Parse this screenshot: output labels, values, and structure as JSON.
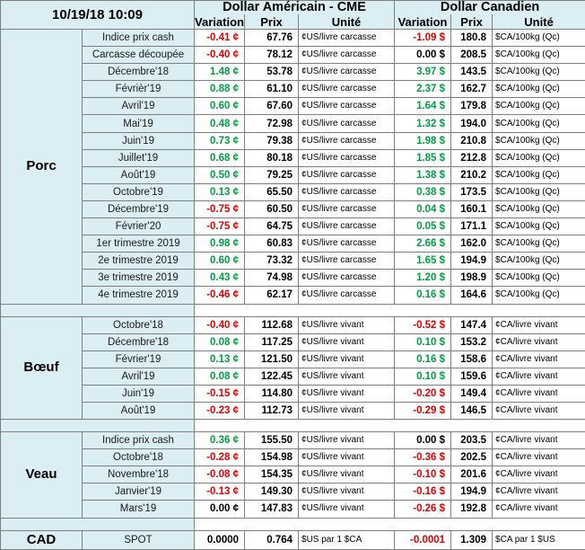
{
  "header": {
    "date": "10/19/18 10:09",
    "usd_title": "Dollar Américain - CME",
    "cad_title": "Dollar Canadien",
    "variation_label": "Variation",
    "prix_label": "Prix",
    "unite_label": "Unité"
  },
  "sections": [
    {
      "name": "Porc",
      "rows": [
        {
          "label": "Indice prix cash",
          "usd_var": "-0.41 ¢",
          "usd_prix": "67.76",
          "usd_unit": "¢US/livre carcasse",
          "cad_var": "-1.09 $",
          "cad_prix": "180.8",
          "cad_unit": "$CA/100kg (Qc)"
        },
        {
          "label": "Carcasse découpée",
          "usd_var": "-0.40 ¢",
          "usd_prix": "78.12",
          "usd_unit": "¢US/livre carcasse",
          "cad_var": "0.00 $",
          "cad_prix": "208.5",
          "cad_unit": "$CA/100kg (Qc)"
        },
        {
          "label": "Décembre'18",
          "usd_var": "1.48 ¢",
          "usd_prix": "53.78",
          "usd_unit": "¢US/livre carcasse",
          "cad_var": "3.97 $",
          "cad_prix": "143.5",
          "cad_unit": "$CA/100kg (Qc)"
        },
        {
          "label": "Févrièr'19",
          "usd_var": "0.88 ¢",
          "usd_prix": "61.10",
          "usd_unit": "¢US/livre carcasse",
          "cad_var": "2.37 $",
          "cad_prix": "162.7",
          "cad_unit": "$CA/100kg (Qc)"
        },
        {
          "label": "Avril'19",
          "usd_var": "0.60 ¢",
          "usd_prix": "67.60",
          "usd_unit": "¢US/livre carcasse",
          "cad_var": "1.64 $",
          "cad_prix": "179.8",
          "cad_unit": "$CA/100kg (Qc)"
        },
        {
          "label": "Mai'19",
          "usd_var": "0.48 ¢",
          "usd_prix": "72.98",
          "usd_unit": "¢US/livre carcasse",
          "cad_var": "1.32 $",
          "cad_prix": "194.0",
          "cad_unit": "$CA/100kg (Qc)"
        },
        {
          "label": "Juin'19",
          "usd_var": "0.73 ¢",
          "usd_prix": "79.38",
          "usd_unit": "¢US/livre carcasse",
          "cad_var": "1.98 $",
          "cad_prix": "210.8",
          "cad_unit": "$CA/100kg (Qc)"
        },
        {
          "label": "Juillet'19",
          "usd_var": "0.68 ¢",
          "usd_prix": "80.18",
          "usd_unit": "¢US/livre carcasse",
          "cad_var": "1.85 $",
          "cad_prix": "212.8",
          "cad_unit": "$CA/100kg (Qc)"
        },
        {
          "label": "Août'19",
          "usd_var": "0.50 ¢",
          "usd_prix": "79.25",
          "usd_unit": "¢US/livre carcasse",
          "cad_var": "1.38 $",
          "cad_prix": "210.2",
          "cad_unit": "$CA/100kg (Qc)"
        },
        {
          "label": "Octobre'19",
          "usd_var": "0.13 ¢",
          "usd_prix": "65.50",
          "usd_unit": "¢US/livre carcasse",
          "cad_var": "0.38 $",
          "cad_prix": "173.5",
          "cad_unit": "$CA/100kg (Qc)"
        },
        {
          "label": "Décembre'19",
          "usd_var": "-0.75 ¢",
          "usd_prix": "60.50",
          "usd_unit": "¢US/livre carcasse",
          "cad_var": "0.04 $",
          "cad_prix": "160.1",
          "cad_unit": "$CA/100kg (Qc)"
        },
        {
          "label": "Février'20",
          "usd_var": "-0.75 ¢",
          "usd_prix": "64.75",
          "usd_unit": "¢US/livre carcasse",
          "cad_var": "0.05 $",
          "cad_prix": "171.1",
          "cad_unit": "$CA/100kg (Qc)"
        },
        {
          "label": "1er trimestre 2019",
          "usd_var": "0.98 ¢",
          "usd_prix": "60.83",
          "usd_unit": "¢US/livre carcasse",
          "cad_var": "2.66 $",
          "cad_prix": "162.0",
          "cad_unit": "$CA/100kg (Qc)"
        },
        {
          "label": "2e trimestre 2019",
          "usd_var": "0.60 ¢",
          "usd_prix": "73.32",
          "usd_unit": "¢US/livre carcasse",
          "cad_var": "1.65 $",
          "cad_prix": "194.9",
          "cad_unit": "$CA/100kg (Qc)"
        },
        {
          "label": "3e trimestre 2019",
          "usd_var": "0.43 ¢",
          "usd_prix": "74.98",
          "usd_unit": "¢US/livre carcasse",
          "cad_var": "1.20 $",
          "cad_prix": "198.9",
          "cad_unit": "$CA/100kg (Qc)"
        },
        {
          "label": "4e trimestre 2019",
          "usd_var": "-0.46 ¢",
          "usd_prix": "62.17",
          "usd_unit": "¢US/livre carcasse",
          "cad_var": "0.16 $",
          "cad_prix": "164.6",
          "cad_unit": "$CA/100kg (Qc)"
        }
      ]
    },
    {
      "name": "Bœuf",
      "rows": [
        {
          "label": "Octobre'18",
          "usd_var": "-0.40 ¢",
          "usd_prix": "112.68",
          "usd_unit": "¢US/livre vivant",
          "cad_var": "-0.52 $",
          "cad_prix": "147.4",
          "cad_unit": "¢CA/livre vivant"
        },
        {
          "label": "Décembre'18",
          "usd_var": "0.08 ¢",
          "usd_prix": "117.25",
          "usd_unit": "¢US/livre vivant",
          "cad_var": "0.10 $",
          "cad_prix": "153.2",
          "cad_unit": "¢CA/livre vivant"
        },
        {
          "label": "Février'19",
          "usd_var": "0.13 ¢",
          "usd_prix": "121.50",
          "usd_unit": "¢US/livre vivant",
          "cad_var": "0.16 $",
          "cad_prix": "158.6",
          "cad_unit": "¢CA/livre vivant"
        },
        {
          "label": "Avril'19",
          "usd_var": "0.08 ¢",
          "usd_prix": "122.45",
          "usd_unit": "¢US/livre vivant",
          "cad_var": "0.10 $",
          "cad_prix": "159.6",
          "cad_unit": "¢CA/livre vivant"
        },
        {
          "label": "Juin'19",
          "usd_var": "-0.15 ¢",
          "usd_prix": "114.80",
          "usd_unit": "¢US/livre vivant",
          "cad_var": "-0.20 $",
          "cad_prix": "149.4",
          "cad_unit": "¢CA/livre vivant"
        },
        {
          "label": "Août'19",
          "usd_var": "-0.23 ¢",
          "usd_prix": "112.73",
          "usd_unit": "¢US/livre vivant",
          "cad_var": "-0.29 $",
          "cad_prix": "146.5",
          "cad_unit": "¢CA/livre vivant"
        }
      ]
    },
    {
      "name": "Veau",
      "rows": [
        {
          "label": "Indice prix cash",
          "usd_var": "0.36 ¢",
          "usd_prix": "155.50",
          "usd_unit": "¢US/livre vivant",
          "cad_var": "0.00 $",
          "cad_prix": "203.5",
          "cad_unit": "¢CA/livre vivant"
        },
        {
          "label": "Octobre'18",
          "usd_var": "-0.28 ¢",
          "usd_prix": "154.98",
          "usd_unit": "¢US/livre vivant",
          "cad_var": "-0.36 $",
          "cad_prix": "202.5",
          "cad_unit": "¢CA/livre vivant"
        },
        {
          "label": "Novembre'18",
          "usd_var": "-0.08 ¢",
          "usd_prix": "154.35",
          "usd_unit": "¢US/livre vivant",
          "cad_var": "-0.10 $",
          "cad_prix": "201.6",
          "cad_unit": "¢CA/livre vivant"
        },
        {
          "label": "Janvier'19",
          "usd_var": "-0.13 ¢",
          "usd_prix": "149.30",
          "usd_unit": "¢US/livre vivant",
          "cad_var": "-0.16 $",
          "cad_prix": "194.9",
          "cad_unit": "¢CA/livre vivant"
        },
        {
          "label": "Mars'19",
          "usd_var": "0.00 ¢",
          "usd_prix": "147.83",
          "usd_unit": "¢US/livre vivant",
          "cad_var": "-0.26 $",
          "cad_prix": "192.8",
          "cad_unit": "¢CA/livre vivant"
        }
      ]
    }
  ],
  "cad": {
    "name": "CAD",
    "label": "SPOT",
    "usd_var": "0.0000",
    "usd_prix": "0.764",
    "usd_unit": "$US par 1 $CA",
    "cad_var": "-0.0001",
    "cad_prix": "1.309",
    "cad_unit": "$CA par 1 $US"
  },
  "colors": {
    "background": "#dbeef3",
    "cell": "#ffffff",
    "negative": "#e00000",
    "positive": "#00a040",
    "border": "#7f7f7f"
  }
}
